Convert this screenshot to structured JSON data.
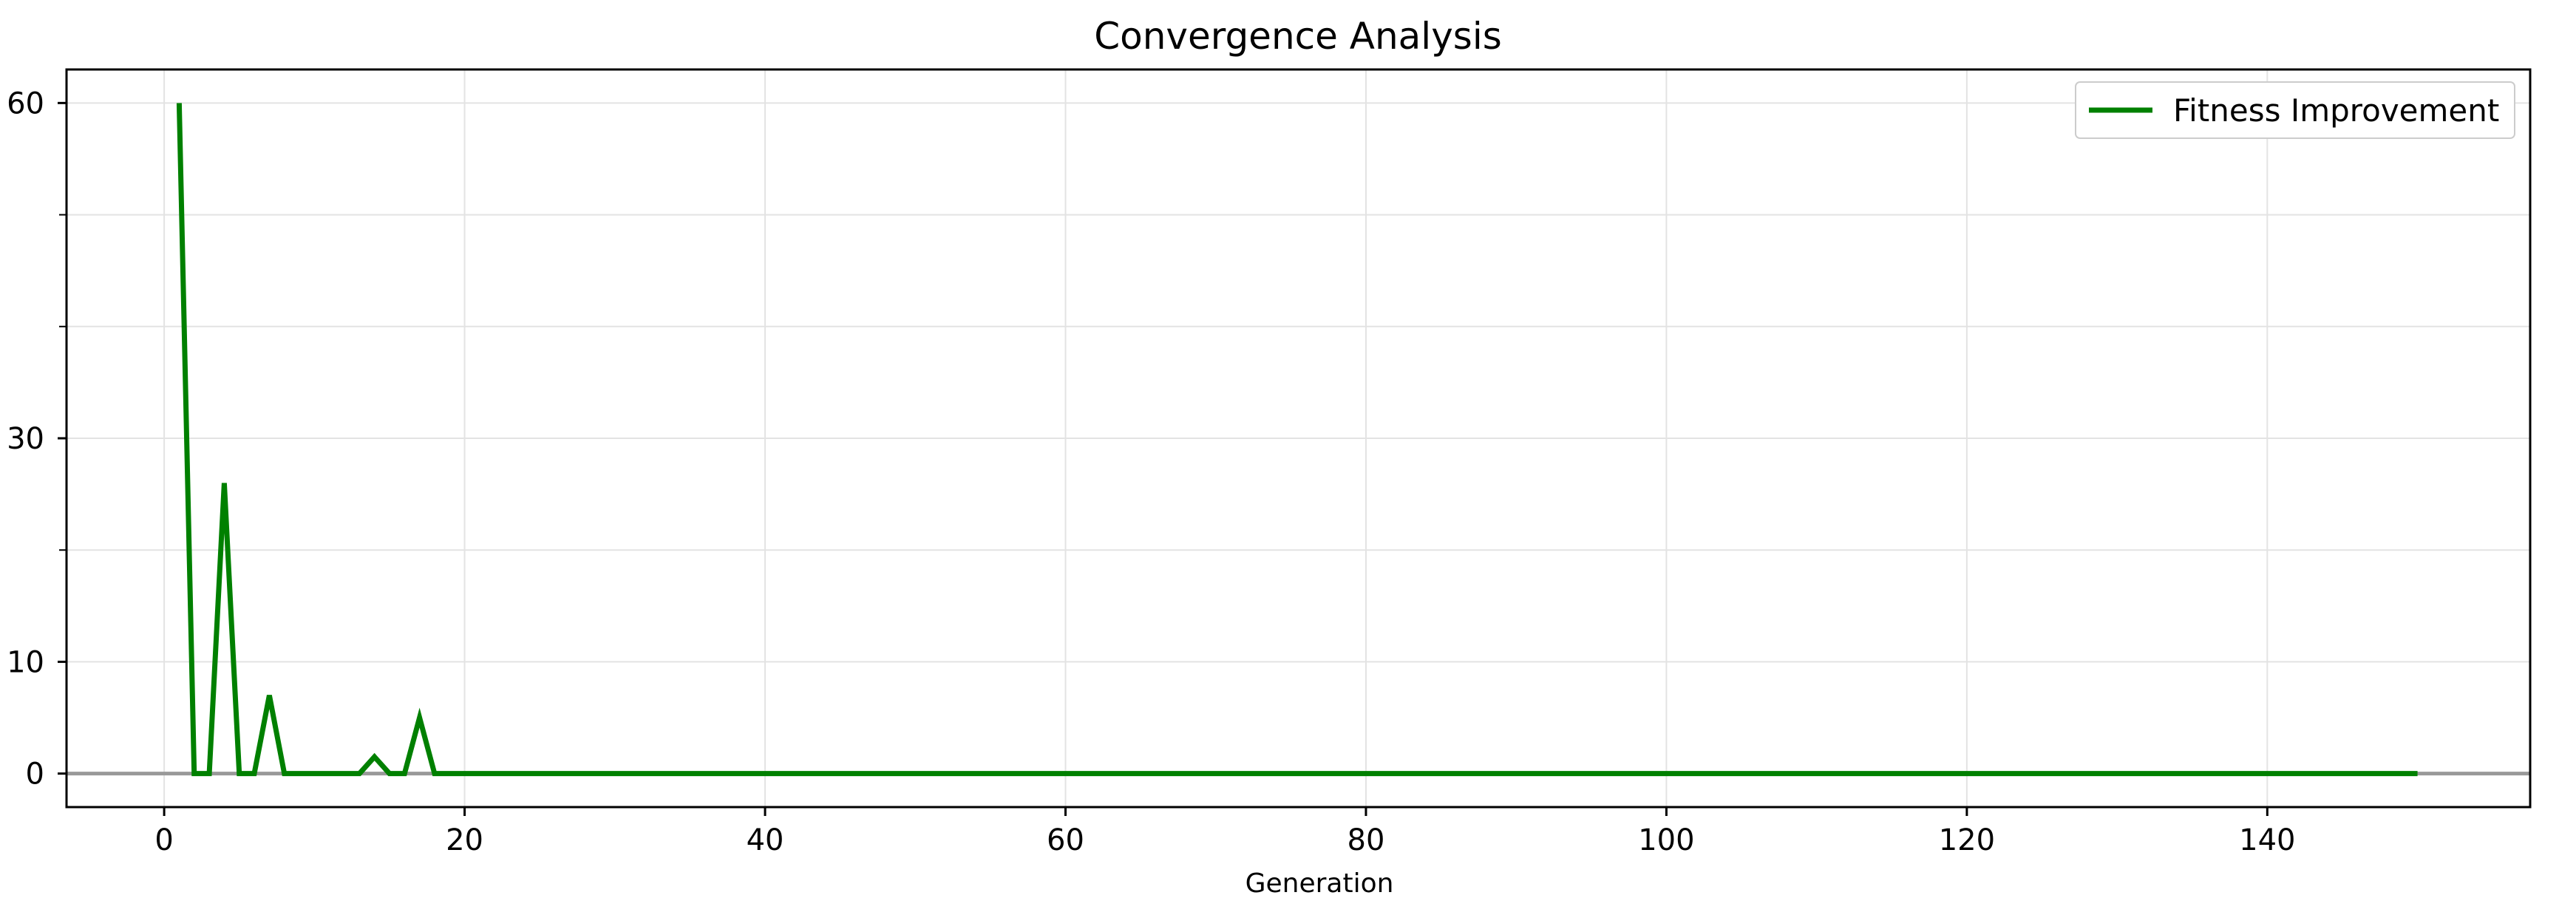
{
  "chart_data": {
    "type": "line",
    "title": "Convergence Analysis",
    "xlabel": "Generation",
    "ylabel": "",
    "xlim": [
      -6.5,
      157.5
    ],
    "ylim": [
      -3,
      63
    ],
    "x_ticks": [
      0,
      20,
      40,
      60,
      80,
      100,
      120,
      140
    ],
    "y_ticks": [
      0,
      10,
      30,
      60
    ],
    "y_tick_labels": [
      "0",
      "10",
      "30",
      "60"
    ],
    "y_minor_ticks": [
      20,
      40,
      50,
      60
    ],
    "y_gridlines": [
      0,
      10,
      20,
      30,
      40,
      50,
      60
    ],
    "grid": true,
    "legend_position": "upper right",
    "reference_line": {
      "y": 0,
      "color": "#999999"
    },
    "series": [
      {
        "name": "Fitness Improvement",
        "color": "#008000",
        "x": [
          1,
          2,
          3,
          4,
          5,
          6,
          7,
          8,
          9,
          10,
          11,
          12,
          13,
          14,
          15,
          16,
          17,
          18,
          150
        ],
        "y": [
          60,
          0,
          0,
          26,
          0,
          0,
          7,
          0,
          0,
          0,
          0,
          0,
          0,
          1.5,
          0,
          0,
          5,
          0,
          0
        ]
      }
    ]
  }
}
